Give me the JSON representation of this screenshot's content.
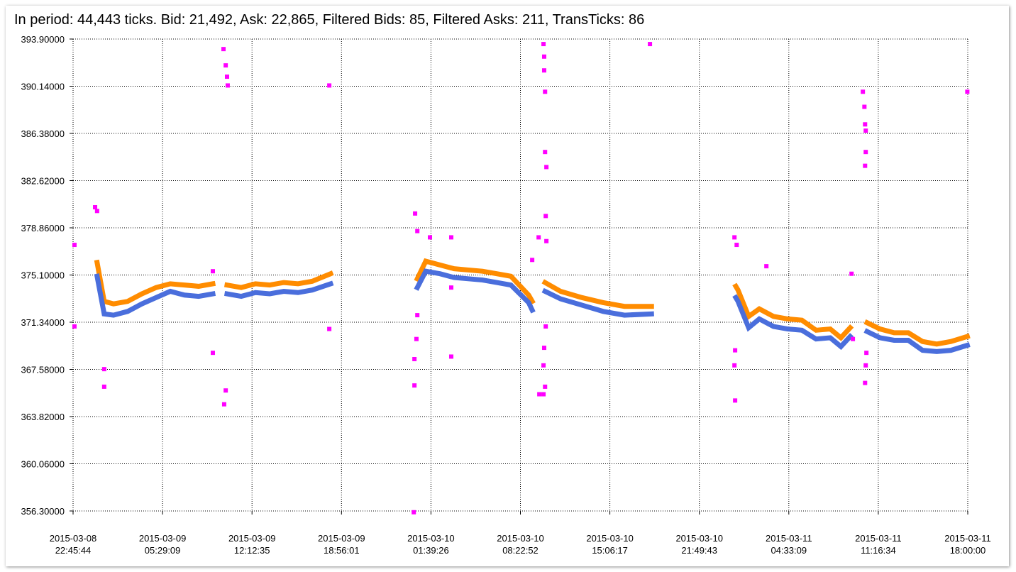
{
  "chart_data": {
    "type": "line",
    "title": "In period: 44,443 ticks. Bid: 21,492, Ask: 22,865, Filtered Bids: 85, Filtered Asks: 211, TransTicks: 86",
    "xlim": [
      "2015-03-08 22:45:44",
      "2015-03-11 18:00:00"
    ],
    "xticks": [
      "2015-03-08 22:45:44",
      "2015-03-09 05:29:09",
      "2015-03-09 12:12:35",
      "2015-03-09 18:56:01",
      "2015-03-10 01:39:26",
      "2015-03-10 08:22:52",
      "2015-03-10 15:06:17",
      "2015-03-10 21:49:43",
      "2015-03-11 04:33:09",
      "2015-03-11 11:16:34",
      "2015-03-11 18:00:00"
    ],
    "ylim": [
      356.3,
      393.9
    ],
    "yticks": [
      {
        "value": 356.3,
        "label": "356.30000"
      },
      {
        "value": 360.06,
        "label": "360.06000"
      },
      {
        "value": 363.82,
        "label": "363.82000"
      },
      {
        "value": 367.58,
        "label": "367.58000"
      },
      {
        "value": 371.34,
        "label": "371.34000"
      },
      {
        "value": 375.1,
        "label": "375.10000"
      },
      {
        "value": 378.86,
        "label": "378.86000"
      },
      {
        "value": 382.62,
        "label": "382.62000"
      },
      {
        "value": 386.38,
        "label": "386.38000"
      },
      {
        "value": 390.14,
        "label": "390.14000"
      },
      {
        "value": 393.9,
        "label": "393.90000"
      }
    ],
    "grid": true,
    "series": [
      {
        "type": "line",
        "color": "#ff8c00",
        "x": [
          "2015-03-09 00:34",
          "2015-03-09 01:06",
          "2015-03-09 01:48",
          "2015-03-09 02:52",
          "2015-03-09 03:56",
          "2015-03-09 05:00",
          "2015-03-09 06:04",
          "2015-03-09 07:08",
          "2015-03-09 08:12",
          "2015-03-09 09:16",
          "2015-03-09 09:48",
          "2015-03-09 10:20",
          "2015-03-09 11:24",
          "2015-03-09 12:28",
          "2015-03-09 13:32",
          "2015-03-09 14:36",
          "2015-03-09 15:40",
          "2015-03-09 16:44",
          "2015-03-09 18:07",
          "2015-03-09 21:00",
          "2015-03-10 00:38",
          "2015-03-10 01:16",
          "2015-03-10 02:20",
          "2015-03-10 03:24",
          "2015-03-10 04:28",
          "2015-03-10 05:32",
          "2015-03-10 06:36",
          "2015-03-10 07:40",
          "2015-03-10 09:00",
          "2015-03-10 09:16",
          "2015-03-10 09:45",
          "2015-03-10 10:14",
          "2015-03-10 11:24",
          "2015-03-10 13:00",
          "2015-03-10 14:36",
          "2015-03-10 16:12",
          "2015-03-10 18:14",
          "2015-03-10 21:00",
          "2015-03-11 00:34",
          "2015-03-11 00:44",
          "2015-03-11 01:32",
          "2015-03-11 02:20",
          "2015-03-11 03:24",
          "2015-03-11 04:28",
          "2015-03-11 05:32",
          "2015-03-11 06:36",
          "2015-03-11 07:40",
          "2015-03-11 08:28",
          "2015-03-11 09:10",
          "2015-03-11 09:48",
          "2015-03-11 10:26",
          "2015-03-11 11:24",
          "2015-03-11 12:28",
          "2015-03-11 13:32",
          "2015-03-11 14:36",
          "2015-03-11 15:40",
          "2015-03-11 16:44",
          "2015-03-11 17:58"
        ],
        "values": [
          376.1,
          373.0,
          372.8,
          373.0,
          373.6,
          374.1,
          374.4,
          374.3,
          374.2,
          374.4,
          null,
          374.3,
          374.1,
          374.4,
          374.3,
          374.5,
          374.4,
          374.6,
          375.2,
          null,
          374.8,
          376.2,
          375.9,
          375.6,
          375.5,
          375.4,
          375.2,
          375.0,
          373.5,
          373.0,
          null,
          374.5,
          373.8,
          373.3,
          372.9,
          372.6,
          372.6,
          null,
          374.2,
          373.9,
          371.8,
          372.4,
          371.8,
          371.6,
          371.5,
          370.7,
          370.8,
          370.1,
          370.9,
          null,
          371.3,
          370.8,
          370.5,
          370.5,
          369.8,
          369.6,
          369.8,
          370.2
        ]
      },
      {
        "type": "line",
        "color": "#4a6edc",
        "x": [
          "2015-03-09 00:34",
          "2015-03-09 01:06",
          "2015-03-09 01:48",
          "2015-03-09 02:52",
          "2015-03-09 03:56",
          "2015-03-09 05:00",
          "2015-03-09 06:04",
          "2015-03-09 07:08",
          "2015-03-09 08:12",
          "2015-03-09 09:16",
          "2015-03-09 09:48",
          "2015-03-09 10:20",
          "2015-03-09 11:24",
          "2015-03-09 12:28",
          "2015-03-09 13:32",
          "2015-03-09 14:36",
          "2015-03-09 15:40",
          "2015-03-09 16:44",
          "2015-03-09 18:07",
          "2015-03-09 21:00",
          "2015-03-10 00:38",
          "2015-03-10 01:16",
          "2015-03-10 02:20",
          "2015-03-10 03:24",
          "2015-03-10 04:28",
          "2015-03-10 05:32",
          "2015-03-10 06:36",
          "2015-03-10 07:40",
          "2015-03-10 09:00",
          "2015-03-10 09:16",
          "2015-03-10 09:45",
          "2015-03-10 10:14",
          "2015-03-10 11:24",
          "2015-03-10 13:00",
          "2015-03-10 14:36",
          "2015-03-10 16:12",
          "2015-03-10 18:14",
          "2015-03-10 21:00",
          "2015-03-11 00:34",
          "2015-03-11 00:44",
          "2015-03-11 01:32",
          "2015-03-11 02:20",
          "2015-03-11 03:24",
          "2015-03-11 04:28",
          "2015-03-11 05:32",
          "2015-03-11 06:36",
          "2015-03-11 07:40",
          "2015-03-11 08:28",
          "2015-03-11 09:10",
          "2015-03-11 09:48",
          "2015-03-11 10:26",
          "2015-03-11 11:24",
          "2015-03-11 12:28",
          "2015-03-11 13:32",
          "2015-03-11 14:36",
          "2015-03-11 15:40",
          "2015-03-11 16:44",
          "2015-03-11 17:58"
        ],
        "values": [
          375.0,
          372.0,
          371.9,
          372.2,
          372.8,
          373.3,
          373.8,
          373.5,
          373.4,
          373.6,
          null,
          373.6,
          373.4,
          373.7,
          373.6,
          373.8,
          373.7,
          373.9,
          374.4,
          null,
          374.1,
          375.4,
          375.2,
          374.9,
          374.8,
          374.7,
          374.5,
          374.3,
          372.9,
          372.3,
          null,
          373.8,
          373.2,
          372.7,
          372.2,
          371.9,
          372.0,
          null,
          373.3,
          373.0,
          370.9,
          371.6,
          371.0,
          370.8,
          370.7,
          370.0,
          370.1,
          369.4,
          370.2,
          null,
          370.6,
          370.1,
          369.9,
          369.9,
          369.1,
          369.0,
          369.1,
          369.5
        ]
      },
      {
        "type": "scatter",
        "color": "#ff00ff",
        "x": [
          "2015-03-08 22:52",
          "2015-03-08 22:52",
          "2015-03-09 00:25",
          "2015-03-09 00:34",
          "2015-03-09 01:06",
          "2015-03-09 01:06",
          "2015-03-09 09:16",
          "2015-03-09 09:16",
          "2015-03-09 10:04",
          "2015-03-09 10:14",
          "2015-03-09 10:20",
          "2015-03-09 10:23",
          "2015-03-09 10:14",
          "2015-03-09 10:07",
          "2015-03-09 18:01",
          "2015-03-09 18:01",
          "2015-03-10 00:28",
          "2015-03-10 00:38",
          "2015-03-10 00:38",
          "2015-03-10 00:34",
          "2015-03-10 00:25",
          "2015-03-10 00:25",
          "2015-03-10 00:22",
          "2015-03-10 01:35",
          "2015-03-10 03:11",
          "2015-03-10 03:11",
          "2015-03-10 03:11",
          "2015-03-10 09:16",
          "2015-03-10 09:45",
          "2015-03-10 09:48",
          "2015-03-10 10:07",
          "2015-03-10 10:10",
          "2015-03-10 10:10",
          "2015-03-10 10:14",
          "2015-03-10 10:14",
          "2015-03-10 10:20",
          "2015-03-10 10:17",
          "2015-03-10 10:20",
          "2015-03-10 10:17",
          "2015-03-10 10:10",
          "2015-03-10 10:07",
          "2015-03-10 10:14",
          "2015-03-10 10:07",
          "2015-03-10 18:07",
          "2015-03-11 00:28",
          "2015-03-11 00:38",
          "2015-03-11 02:52",
          "2015-03-11 00:31",
          "2015-03-11 00:28",
          "2015-03-11 00:31",
          "2015-03-11 09:16",
          "2015-03-11 09:22",
          "2015-03-11 10:07",
          "2015-03-11 10:14",
          "2015-03-11 10:17",
          "2015-03-11 10:20",
          "2015-03-11 10:20",
          "2015-03-11 10:17",
          "2015-03-11 10:23",
          "2015-03-11 10:20",
          "2015-03-11 10:17",
          "2015-03-11 17:58"
        ],
        "values": [
          377.5,
          371.0,
          380.5,
          380.2,
          367.6,
          366.2,
          375.4,
          368.9,
          393.1,
          391.8,
          390.9,
          390.2,
          365.9,
          364.8,
          390.2,
          370.8,
          380.0,
          378.6,
          371.9,
          370.0,
          368.4,
          366.3,
          356.2,
          378.1,
          378.1,
          374.1,
          368.6,
          376.3,
          378.1,
          365.6,
          393.5,
          392.5,
          391.4,
          389.7,
          384.9,
          383.7,
          379.8,
          377.8,
          371.0,
          369.3,
          367.9,
          366.2,
          365.6,
          393.5,
          378.1,
          377.5,
          375.8,
          369.1,
          367.9,
          365.1,
          375.2,
          370.0,
          389.7,
          388.5,
          387.1,
          386.6,
          384.9,
          383.8,
          368.9,
          367.9,
          366.5,
          389.7
        ]
      }
    ]
  }
}
